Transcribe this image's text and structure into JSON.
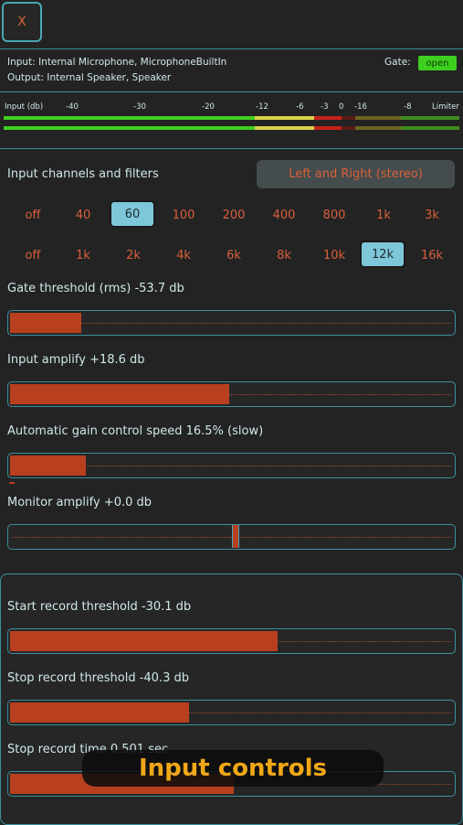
{
  "close_label": "X",
  "io": {
    "input": "Input: Internal Microphone, MicrophoneBuiltIn",
    "output": "Output: Internal Speaker, Speaker",
    "gate_label": "Gate:",
    "gate_status": "open"
  },
  "meter": {
    "input_label": "Input (db)",
    "scale": [
      "-40",
      "-30",
      "-20",
      "-12",
      "-6",
      "-3",
      "0",
      "-16",
      "-8",
      "Limiter"
    ]
  },
  "channels": {
    "label": "Input channels and filters",
    "stereo_button": "Left and Right (stereo)"
  },
  "highpass": [
    "off",
    "40",
    "60",
    "100",
    "200",
    "400",
    "800",
    "1k",
    "3k"
  ],
  "highpass_selected": "60",
  "lowpass": [
    "off",
    "1k",
    "2k",
    "4k",
    "6k",
    "8k",
    "10k",
    "12k",
    "16k"
  ],
  "lowpass_selected": "12k",
  "sliders": {
    "gate": {
      "label": "Gate threshold (rms) -53.7 db",
      "level": 0.16
    },
    "amplify": {
      "label": "Input amplify +18.6 db",
      "level": 0.49
    },
    "agc": {
      "label": "Automatic gain control speed 16.5% (slow)",
      "level": 0.17
    },
    "monitor": {
      "label": "Monitor amplify +0.0 db",
      "level": 0.5
    },
    "start": {
      "label": "Start record threshold -30.1 db",
      "level": 0.6
    },
    "stop": {
      "label": "Stop record threshold -40.3 db",
      "level": 0.4
    },
    "time": {
      "label": "Stop record time 0.501 sec",
      "level": 0.5
    }
  },
  "toast": "Input controls",
  "colors": {
    "accent": "#3c8f9c",
    "fill": "#b8401f",
    "option": "#d9603a",
    "selected": "#7ec6d9",
    "gate_open": "#3fcf1f"
  }
}
